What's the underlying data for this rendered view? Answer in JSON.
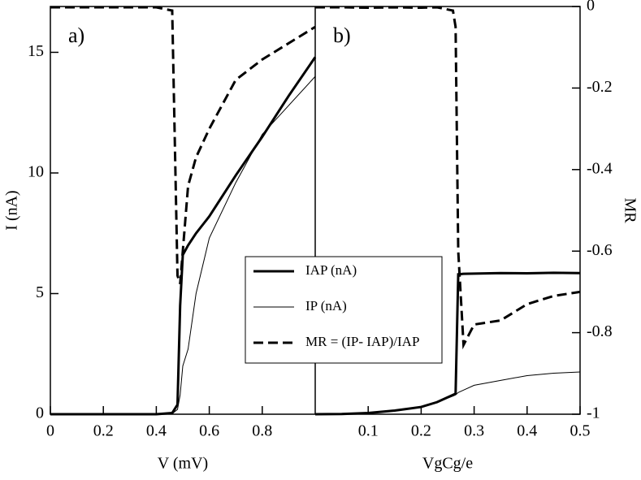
{
  "chart_data": [
    {
      "type": "line",
      "title": "a)",
      "xlabel": "V (mV)",
      "ylabel": "I (nA)",
      "xlim": [
        0,
        1
      ],
      "xticks": [
        0,
        0.2,
        0.4,
        0.6,
        0.8
      ],
      "ylim": [
        0,
        16.9
      ],
      "yticks": [
        0,
        5,
        10,
        15
      ],
      "y2lim": [
        -1,
        0
      ],
      "x": [
        0,
        0.1,
        0.2,
        0.3,
        0.4,
        0.46,
        0.48,
        0.49,
        0.5,
        0.52,
        0.55,
        0.6,
        0.7,
        0.8,
        0.9,
        1.0
      ],
      "series": [
        {
          "name": "IAP (nA)",
          "color": "#000000",
          "linewidth": 3,
          "linestyle": "solid",
          "values": [
            0,
            0,
            0,
            0,
            0,
            0.05,
            0.4,
            4.5,
            6.6,
            7.0,
            7.5,
            8.2,
            9.9,
            11.5,
            13.2,
            14.8
          ]
        },
        {
          "name": "IP (nA)",
          "color": "#000000",
          "linewidth": 1,
          "linestyle": "solid",
          "values": [
            0,
            0,
            0,
            0,
            0,
            0.02,
            0.2,
            0.8,
            2.0,
            2.7,
            5.0,
            7.3,
            9.6,
            11.6,
            12.8,
            14.0
          ]
        },
        {
          "name": "MR = (IP- IAP)/IAP",
          "color": "#000000",
          "linewidth": 3,
          "linestyle": "dashed",
          "axis": "y2",
          "values": [
            -0.002,
            -0.002,
            -0.002,
            -0.002,
            -0.002,
            -0.01,
            -0.66,
            -0.68,
            -0.6,
            -0.44,
            -0.37,
            -0.3,
            -0.18,
            -0.13,
            -0.09,
            -0.05
          ]
        }
      ]
    },
    {
      "type": "line",
      "title": "b)",
      "xlabel": "VgCg/e",
      "y2label": "MR",
      "xlim": [
        0,
        0.5
      ],
      "xticks": [
        0.1,
        0.2,
        0.3,
        0.4,
        0.5
      ],
      "ylim": [
        0,
        16.9
      ],
      "y2lim": [
        -1,
        0
      ],
      "y2ticks": [
        0,
        -0.2,
        -0.4,
        -0.6,
        -0.8,
        -1
      ],
      "legend": "center",
      "x": [
        0,
        0.05,
        0.1,
        0.15,
        0.2,
        0.23,
        0.26,
        0.265,
        0.27,
        0.28,
        0.3,
        0.35,
        0.4,
        0.45,
        0.5
      ],
      "series": [
        {
          "name": "IAP (nA)",
          "color": "#000000",
          "linewidth": 3,
          "linestyle": "solid",
          "values": [
            0,
            0.01,
            0.05,
            0.15,
            0.3,
            0.5,
            0.8,
            0.85,
            5.8,
            5.82,
            5.83,
            5.85,
            5.84,
            5.86,
            5.85
          ]
        },
        {
          "name": "IP (nA)",
          "color": "#000000",
          "linewidth": 1,
          "linestyle": "solid",
          "values": [
            0,
            0.01,
            0.05,
            0.15,
            0.3,
            0.5,
            0.75,
            0.8,
            0.9,
            1.0,
            1.2,
            1.4,
            1.6,
            1.7,
            1.75
          ]
        },
        {
          "name": "MR = (IP- IAP)/IAP",
          "color": "#000000",
          "linewidth": 3,
          "linestyle": "dashed",
          "axis": "y2",
          "values": [
            -0.002,
            -0.002,
            -0.003,
            -0.002,
            -0.003,
            -0.002,
            -0.01,
            -0.05,
            -0.6,
            -0.83,
            -0.78,
            -0.77,
            -0.73,
            -0.71,
            -0.7
          ]
        }
      ]
    }
  ]
}
